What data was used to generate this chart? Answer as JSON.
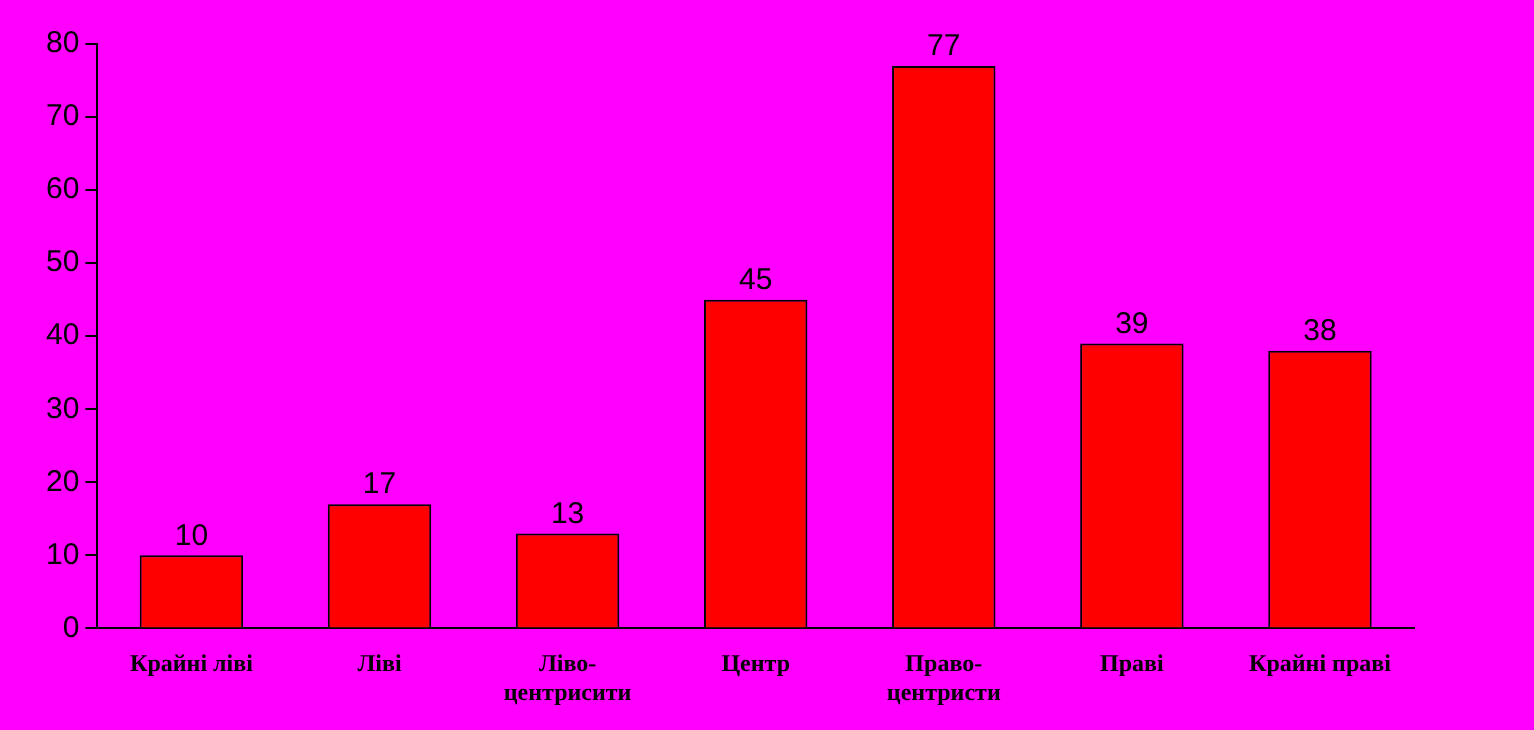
{
  "chart_data": {
    "type": "bar",
    "categories": [
      "Крайні ліві",
      "Ліві",
      "Ліво-центрисити",
      "Центр",
      "Право-центристи",
      "Праві",
      "Крайні праві"
    ],
    "values": [
      10,
      17,
      13,
      45,
      77,
      39,
      38
    ],
    "color": "#ff0000",
    "ylim": [
      0,
      80
    ],
    "yticks": [
      0,
      10,
      20,
      30,
      40,
      50,
      60,
      70,
      80
    ],
    "grid": false,
    "data_labels": true
  }
}
